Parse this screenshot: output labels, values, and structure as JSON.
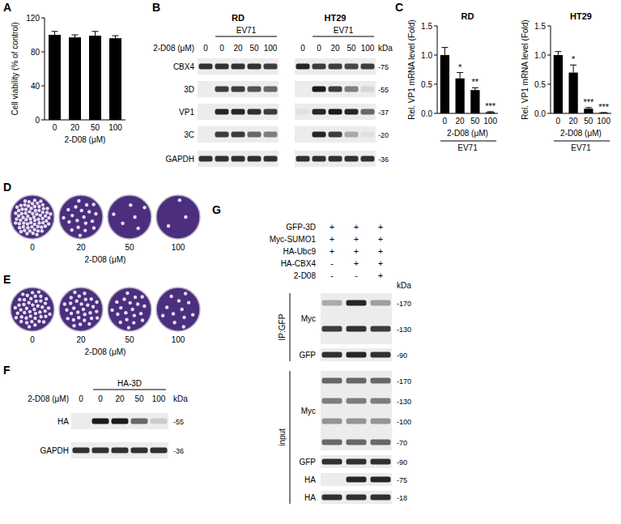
{
  "letters": [
    "A",
    "B",
    "C",
    "D",
    "E",
    "F",
    "G"
  ],
  "chart_data": [
    {
      "type": "bar",
      "ylabel": "Cell viability (% of control)",
      "xlabel": "2-D08 (μM)",
      "categories": [
        "0",
        "20",
        "50",
        "100"
      ],
      "values": [
        100,
        97,
        99,
        96
      ],
      "error": [
        4,
        3,
        5,
        3
      ],
      "color": "#000000",
      "ylim": [
        0,
        120
      ],
      "yticks": [
        0,
        40,
        80,
        120
      ]
    },
    {
      "type": "bar",
      "title": "RD",
      "ylabel": "Rel. VP1 mRNA level (Fold)",
      "xlabel": "2-D08 (μM)",
      "group_label": "EV71",
      "categories": [
        "0",
        "20",
        "50",
        "100"
      ],
      "values": [
        1.0,
        0.6,
        0.4,
        0.02
      ],
      "error": [
        0.13,
        0.1,
        0.04,
        0.01
      ],
      "significance": [
        null,
        "*",
        "**",
        "***"
      ],
      "color": "#000000",
      "ylim": [
        0,
        1.5
      ],
      "yticks": [
        {
          "value": 0,
          "label": "0.0"
        },
        {
          "value": 0.5,
          "label": "0.5"
        },
        {
          "value": 1,
          "label": "1.0"
        },
        {
          "value": 1.5,
          "label": "1.5"
        }
      ]
    },
    {
      "type": "bar",
      "title": "HT29",
      "ylabel": "Rel. VP1 mRNA level (Fold)",
      "xlabel": "2-D08 (μM)",
      "group_label": "EV71",
      "categories": [
        "0",
        "20",
        "50",
        "100"
      ],
      "values": [
        1.0,
        0.7,
        0.08,
        0.01
      ],
      "error": [
        0.06,
        0.13,
        0.02,
        0.005
      ],
      "significance": [
        null,
        "*",
        "***",
        "***"
      ],
      "color": "#000000",
      "ylim": [
        0,
        1.5
      ],
      "yticks": [
        {
          "value": 0,
          "label": "0.0"
        },
        {
          "value": 0.5,
          "label": "0.5"
        },
        {
          "value": 1,
          "label": "1.0"
        },
        {
          "value": 1.5,
          "label": "1.5"
        }
      ]
    }
  ],
  "blot_B": {
    "treatment_label": "2-D08 (μM)",
    "kda_label": "kDa",
    "groups": [
      {
        "title": "RD",
        "infection": "EV71",
        "doses": [
          "0",
          "0",
          "20",
          "50",
          "100"
        ]
      },
      {
        "title": "HT29",
        "infection": "EV71",
        "doses": [
          "0",
          "0",
          "20",
          "50",
          "100"
        ]
      }
    ],
    "rows": [
      {
        "label": "CBX4",
        "kda": "-75",
        "intensity": [
          [
            0.85,
            0.85,
            0.85,
            0.85,
            0.8
          ],
          [
            0.9,
            0.8,
            0.8,
            0.75,
            0.8
          ]
        ]
      },
      {
        "label": "3D",
        "kda": "-55",
        "intensity": [
          [
            0,
            0.8,
            0.8,
            0.7,
            0.6
          ],
          [
            0,
            0.95,
            0.8,
            0.5,
            0.1
          ]
        ]
      },
      {
        "label": "VP1",
        "kda": "-37",
        "intensity": [
          [
            0,
            0.9,
            0.9,
            0.85,
            0.8
          ],
          [
            0.05,
            0.9,
            0.95,
            0.9,
            0.6
          ]
        ]
      },
      {
        "label": "3C",
        "kda": "-20",
        "intensity": [
          [
            0,
            0.8,
            0.8,
            0.6,
            0.5
          ],
          [
            0,
            0.9,
            0.8,
            0.3,
            0.05
          ]
        ]
      },
      {
        "label": "GAPDH",
        "kda": "-36",
        "intensity": [
          [
            0.85,
            0.85,
            0.85,
            0.85,
            0.85
          ],
          [
            0.85,
            0.85,
            0.85,
            0.85,
            0.85
          ]
        ]
      }
    ]
  },
  "plates_D": {
    "xlabel": "2-D08 (μM)",
    "doses": [
      "0",
      "20",
      "50",
      "100"
    ],
    "plaques": [
      70,
      20,
      6,
      3
    ]
  },
  "plates_E": {
    "xlabel": "2-D08 (μM)",
    "doses": [
      "0",
      "20",
      "50",
      "100"
    ],
    "plaques": [
      45,
      30,
      20,
      12
    ]
  },
  "blot_F": {
    "treatment_label": "2-D08 (μM)",
    "construct": "HA-3D",
    "kda_label": "kDa",
    "doses": [
      "0",
      "0",
      "20",
      "50",
      "100"
    ],
    "rows": [
      {
        "label": "HA",
        "kda": "-55",
        "intensity": [
          0,
          0.95,
          0.95,
          0.6,
          0.15
        ]
      },
      {
        "label": "GAPDH",
        "kda": "-36",
        "intensity": [
          0.85,
          0.85,
          0.85,
          0.85,
          0.85
        ]
      }
    ]
  },
  "blot_G": {
    "kda_label": "kDa",
    "conditions": [
      {
        "label": "GFP-3D",
        "signs": [
          "+",
          "+",
          "+"
        ]
      },
      {
        "label": "Myc-SUMO1",
        "signs": [
          "+",
          "+",
          "+"
        ]
      },
      {
        "label": "HA-Ubc9",
        "signs": [
          "+",
          "+",
          "+"
        ]
      },
      {
        "label": "HA-CBX4",
        "signs": [
          "-",
          "+",
          "+"
        ]
      },
      {
        "label": "2-D08",
        "signs": [
          "-",
          "-",
          "+"
        ]
      }
    ],
    "sections": [
      {
        "label": "IP:GFP",
        "rows": [
          {
            "label": "Myc",
            "bands": [
              {
                "kda": "-170",
                "intensity": [
                  0.3,
                  0.9,
                  0.35
                ]
              },
              {
                "kda": "-130",
                "intensity": [
                  0.8,
                  0.85,
                  0.8
                ]
              }
            ]
          },
          {
            "label": "GFP",
            "bands": [
              {
                "kda": "-90",
                "intensity": [
                  0.85,
                  0.9,
                  0.85
                ]
              }
            ]
          }
        ]
      },
      {
        "label": "input",
        "rows": [
          {
            "label": "Myc",
            "bands": [
              {
                "kda": "-170",
                "intensity": [
                  0.6,
                  0.6,
                  0.6
                ]
              },
              {
                "kda": "-130",
                "intensity": [
                  0.5,
                  0.5,
                  0.5
                ]
              },
              {
                "kda": "-100",
                "intensity": [
                  0.4,
                  0.4,
                  0.4
                ]
              },
              {
                "kda": "-70",
                "intensity": [
                  0.6,
                  0.6,
                  0.6
                ]
              }
            ]
          },
          {
            "label": "GFP",
            "bands": [
              {
                "kda": "-90",
                "intensity": [
                  0.85,
                  0.85,
                  0.85
                ]
              }
            ]
          },
          {
            "label": "HA",
            "bands": [
              {
                "kda": "-75",
                "intensity": [
                  0,
                  0.9,
                  0.9
                ]
              }
            ]
          },
          {
            "label": "HA",
            "bands": [
              {
                "kda": "-18",
                "intensity": [
                  0.85,
                  0.85,
                  0.85
                ]
              }
            ]
          }
        ]
      }
    ]
  }
}
